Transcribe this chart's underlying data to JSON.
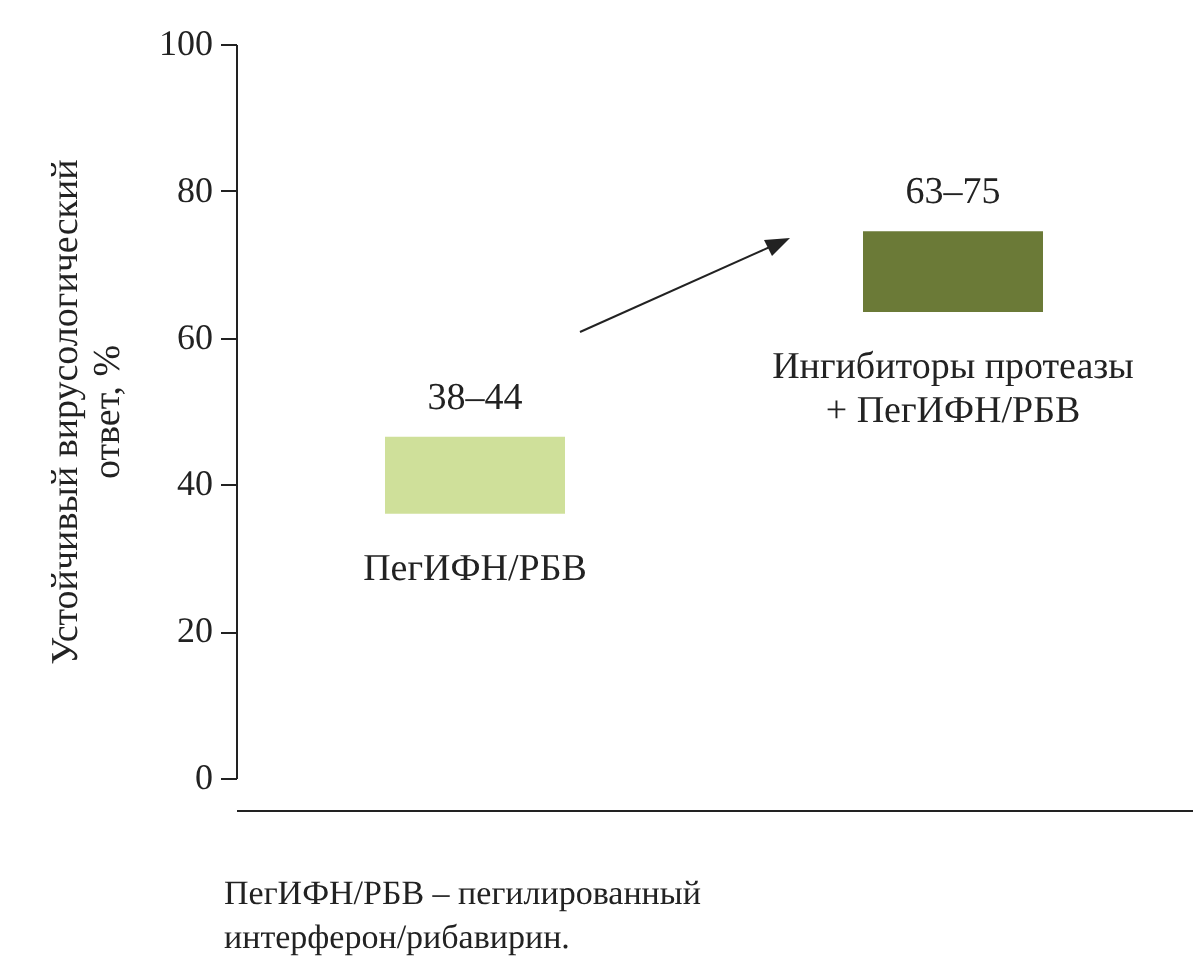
{
  "chart_data": {
    "type": "bar",
    "ylabel": "Устойчивый вирусологический ответ, %",
    "categories": [
      "ПегИФН/РБВ",
      "Ингибиторы протеазы\n+ ПегИФН/РБВ"
    ],
    "base": [
      36,
      63.5
    ],
    "values": [
      10.5,
      11
    ],
    "colors": [
      "#cfe09a",
      "#6b7a37"
    ],
    "value_labels": [
      "38–44",
      "63–75"
    ],
    "ylim": [
      0,
      100
    ],
    "yticks": [
      0,
      20,
      40,
      60,
      80,
      100
    ],
    "grid": false,
    "annotations": [
      "ПегИФН/РБВ – пегилированный интерферон/рибавирин."
    ]
  }
}
